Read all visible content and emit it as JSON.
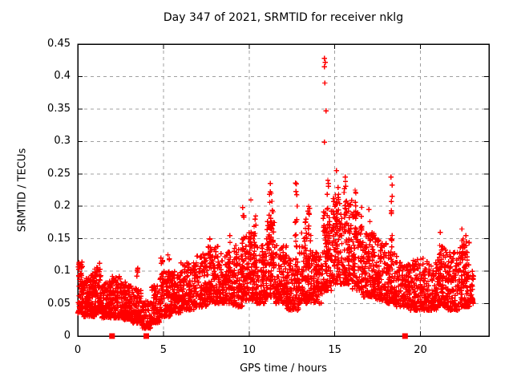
{
  "chart_data": {
    "type": "scatter",
    "title": "Day 347 of 2021, SRMTID for receiver nklg",
    "xlabel": "GPS time / hours",
    "ylabel": "SRMTID / TECUs",
    "xlim": [
      0,
      24
    ],
    "ylim": [
      0,
      0.45
    ],
    "xticks": [
      0,
      5,
      10,
      15,
      20
    ],
    "xtick_labels": [
      "0",
      "5",
      "10",
      "15",
      "20"
    ],
    "yticks": [
      0,
      0.05,
      0.1,
      0.15,
      0.2,
      0.25,
      0.3,
      0.35,
      0.4,
      0.45
    ],
    "ytick_labels": [
      "0",
      "0.05",
      "0.1",
      "0.15",
      "0.2",
      "0.25",
      "0.3",
      "0.35",
      "0.4",
      "0.45"
    ],
    "grid": true,
    "legend": "none",
    "marker": "plus",
    "point_color": "#ff0000",
    "grid_color": "#a0a0a0",
    "background": "#ffffff",
    "text_color": "#000000",
    "seed": 20211213,
    "outlier_points": [
      [
        14.4,
        0.428
      ],
      [
        14.45,
        0.422
      ],
      [
        14.4,
        0.415
      ],
      [
        14.42,
        0.39
      ],
      [
        14.5,
        0.347
      ],
      [
        14.4,
        0.299
      ]
    ],
    "zero_marker": "filled-square",
    "zero_marker_x": [
      2.0,
      4.0,
      19.1
    ],
    "cloud_bands": [
      [
        0.0,
        0.3,
        0.035,
        0.115,
        70
      ],
      [
        0.3,
        0.7,
        0.03,
        0.09,
        80
      ],
      [
        0.7,
        1.0,
        0.03,
        0.095,
        70
      ],
      [
        1.0,
        1.4,
        0.035,
        0.115,
        90
      ],
      [
        1.4,
        2.0,
        0.028,
        0.085,
        110
      ],
      [
        2.0,
        2.6,
        0.028,
        0.095,
        110
      ],
      [
        2.6,
        3.2,
        0.025,
        0.085,
        100
      ],
      [
        3.2,
        3.7,
        0.02,
        0.075,
        80
      ],
      [
        3.7,
        4.3,
        0.012,
        0.055,
        80
      ],
      [
        4.3,
        4.8,
        0.02,
        0.08,
        80
      ],
      [
        4.8,
        5.4,
        0.03,
        0.1,
        90
      ],
      [
        5.4,
        6.0,
        0.035,
        0.1,
        90
      ],
      [
        6.0,
        6.8,
        0.04,
        0.115,
        120
      ],
      [
        6.8,
        7.6,
        0.045,
        0.13,
        120
      ],
      [
        7.6,
        8.2,
        0.05,
        0.14,
        100
      ],
      [
        8.2,
        9.0,
        0.05,
        0.13,
        120
      ],
      [
        9.0,
        9.6,
        0.045,
        0.14,
        100
      ],
      [
        9.6,
        10.4,
        0.055,
        0.16,
        130
      ],
      [
        10.4,
        11.0,
        0.05,
        0.14,
        100
      ],
      [
        11.0,
        11.5,
        0.06,
        0.18,
        90
      ],
      [
        11.5,
        12.2,
        0.05,
        0.14,
        110
      ],
      [
        12.2,
        12.9,
        0.04,
        0.12,
        110
      ],
      [
        12.9,
        13.6,
        0.05,
        0.16,
        110
      ],
      [
        13.6,
        14.3,
        0.05,
        0.13,
        110
      ],
      [
        14.3,
        14.8,
        0.07,
        0.2,
        90
      ],
      [
        14.8,
        15.4,
        0.08,
        0.22,
        100
      ],
      [
        15.4,
        16.0,
        0.08,
        0.21,
        100
      ],
      [
        16.0,
        16.6,
        0.07,
        0.2,
        100
      ],
      [
        16.6,
        17.4,
        0.06,
        0.16,
        120
      ],
      [
        17.4,
        18.0,
        0.055,
        0.15,
        100
      ],
      [
        18.0,
        18.6,
        0.05,
        0.13,
        100
      ],
      [
        18.6,
        19.4,
        0.045,
        0.115,
        120
      ],
      [
        19.4,
        20.2,
        0.04,
        0.12,
        120
      ],
      [
        20.2,
        21.0,
        0.04,
        0.115,
        120
      ],
      [
        21.0,
        21.6,
        0.045,
        0.14,
        100
      ],
      [
        21.6,
        22.3,
        0.04,
        0.13,
        110
      ],
      [
        22.3,
        22.9,
        0.045,
        0.145,
        100
      ],
      [
        22.9,
        23.1,
        0.05,
        0.1,
        30
      ]
    ],
    "spikes": [
      [
        3.45,
        0.05,
        0.105,
        8
      ],
      [
        4.9,
        0.05,
        0.12,
        10
      ],
      [
        5.3,
        0.06,
        0.125,
        8
      ],
      [
        7.75,
        0.08,
        0.15,
        10
      ],
      [
        8.85,
        0.08,
        0.155,
        10
      ],
      [
        9.65,
        0.09,
        0.198,
        14
      ],
      [
        10.1,
        0.1,
        0.21,
        12
      ],
      [
        10.35,
        0.09,
        0.185,
        10
      ],
      [
        11.2,
        0.1,
        0.235,
        14
      ],
      [
        11.35,
        0.1,
        0.22,
        10
      ],
      [
        12.75,
        0.09,
        0.236,
        14
      ],
      [
        13.3,
        0.08,
        0.18,
        10
      ],
      [
        13.5,
        0.09,
        0.2,
        10
      ],
      [
        14.6,
        0.12,
        0.24,
        12
      ],
      [
        15.15,
        0.1,
        0.255,
        16
      ],
      [
        15.6,
        0.1,
        0.245,
        14
      ],
      [
        16.2,
        0.09,
        0.225,
        12
      ],
      [
        17.0,
        0.08,
        0.195,
        10
      ],
      [
        18.3,
        0.1,
        0.245,
        14
      ],
      [
        21.2,
        0.08,
        0.16,
        10
      ],
      [
        22.45,
        0.08,
        0.165,
        10
      ],
      [
        22.7,
        0.07,
        0.155,
        8
      ]
    ]
  }
}
